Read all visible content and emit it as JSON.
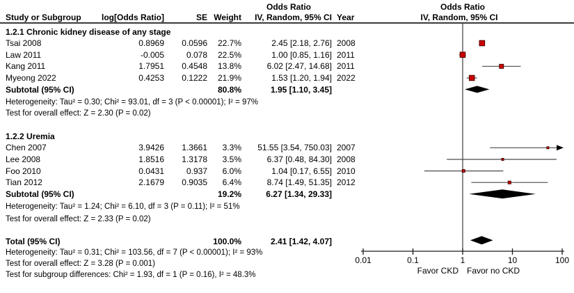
{
  "chart_data": {
    "type": "forest",
    "or_column_title": "Odds Ratio",
    "plot_title": "Odds Ratio",
    "plot_subtitle": "IV, Random, 95% CI",
    "columns": {
      "study": "Study or Subgroup",
      "log_or": "log[Odds Ratio]",
      "se": "SE",
      "weight": "Weight",
      "or_ci": "IV, Random, 95% CI",
      "year": "Year"
    },
    "subgroups": [
      {
        "title": "1.2.1 Chronic kidney disease of any stage",
        "studies": [
          {
            "name": "Tsai 2008",
            "log_or": "0.8969",
            "se": "0.0596",
            "weight": "22.7%",
            "or_ci": "2.45 [2.18, 2.76]",
            "year": "2008",
            "or": 2.45,
            "lo": 2.18,
            "hi": 2.76,
            "w": 22.7
          },
          {
            "name": "Law 2011",
            "log_or": "-0.005",
            "se": "0.078",
            "weight": "22.5%",
            "or_ci": "1.00 [0.85, 1.16]",
            "year": "2011",
            "or": 1.0,
            "lo": 0.85,
            "hi": 1.16,
            "w": 22.5
          },
          {
            "name": "Kang 2011",
            "log_or": "1.7951",
            "se": "0.4548",
            "weight": "13.8%",
            "or_ci": "6.02 [2.47, 14.68]",
            "year": "2011",
            "or": 6.02,
            "lo": 2.47,
            "hi": 14.68,
            "w": 13.8
          },
          {
            "name": "Myeong 2022",
            "log_or": "0.4253",
            "se": "0.1222",
            "weight": "21.9%",
            "or_ci": "1.53 [1.20, 1.94]",
            "year": "2022",
            "or": 1.53,
            "lo": 1.2,
            "hi": 1.94,
            "w": 21.9
          }
        ],
        "subtotal": {
          "label": "Subtotal (95% CI)",
          "weight": "80.8%",
          "or_ci": "1.95 [1.10, 3.45]",
          "or": 1.95,
          "lo": 1.1,
          "hi": 3.45
        },
        "heterogeneity": "Heterogeneity: Tau² = 0.30; Chi² = 93.01, df = 3 (P < 0.00001); I² = 97%",
        "overall_effect": "Test for overall effect: Z = 2.30 (P = 0.02)"
      },
      {
        "title": "1.2.2 Uremia",
        "studies": [
          {
            "name": "Chen 2007",
            "log_or": "3.9426",
            "se": "1.3661",
            "weight": "3.3%",
            "or_ci": "51.55 [3.54, 750.03]",
            "year": "2007",
            "or": 51.55,
            "lo": 3.54,
            "hi": 750.03,
            "w": 3.3
          },
          {
            "name": "Lee 2008",
            "log_or": "1.8516",
            "se": "1.3178",
            "weight": "3.5%",
            "or_ci": "6.37 [0.48, 84.30]",
            "year": "2008",
            "or": 6.37,
            "lo": 0.48,
            "hi": 84.3,
            "w": 3.5
          },
          {
            "name": "Foo 2010",
            "log_or": "0.0431",
            "se": "0.937",
            "weight": "6.0%",
            "or_ci": "1.04 [0.17, 6.55]",
            "year": "2010",
            "or": 1.04,
            "lo": 0.17,
            "hi": 6.55,
            "w": 6.0
          },
          {
            "name": "Tian 2012",
            "log_or": "2.1679",
            "se": "0.9035",
            "weight": "6.4%",
            "or_ci": "8.74 [1.49, 51.35]",
            "year": "2012",
            "or": 8.74,
            "lo": 1.49,
            "hi": 51.35,
            "w": 6.4
          }
        ],
        "subtotal": {
          "label": "Subtotal (95% CI)",
          "weight": "19.2%",
          "or_ci": "6.27 [1.34, 29.33]",
          "or": 6.27,
          "lo": 1.34,
          "hi": 29.33
        },
        "heterogeneity": "Heterogeneity: Tau² = 1.24; Chi² = 6.10, df = 3 (P = 0.11); I² = 51%",
        "overall_effect": "Test for overall effect: Z = 2.33 (P = 0.02)"
      }
    ],
    "total": {
      "label": "Total (95% CI)",
      "weight": "100.0%",
      "or_ci": "2.41 [1.42, 4.07]",
      "or": 2.41,
      "lo": 1.42,
      "hi": 4.07
    },
    "notes": {
      "heterogeneity": "Heterogeneity: Tau² = 0.31; Chi² = 103.56, df = 7 (P < 0.00001); I² = 93%",
      "overall_effect": "Test for overall effect: Z = 3.28 (P = 0.001)",
      "subgroup_differences": "Test for subgroup differences: Chi² = 1.93, df = 1 (P = 0.16), I² = 48.3%"
    },
    "axis": {
      "xscale": "log",
      "xlim": [
        0.01,
        100
      ],
      "no_effect": 1,
      "ticks": [
        0.01,
        0.1,
        1,
        10,
        100
      ],
      "tick_labels": [
        "0.01",
        "0.1",
        "1",
        "10",
        "100"
      ],
      "left_label": "Favor CKD",
      "right_label": "Favor no CKD"
    }
  },
  "colors": {
    "marker_fill": "#cc0000",
    "marker_stroke": "#500000",
    "ci_line": "#4a4a4a",
    "diamond": "#000000",
    "axis": "#1a1a1a"
  }
}
